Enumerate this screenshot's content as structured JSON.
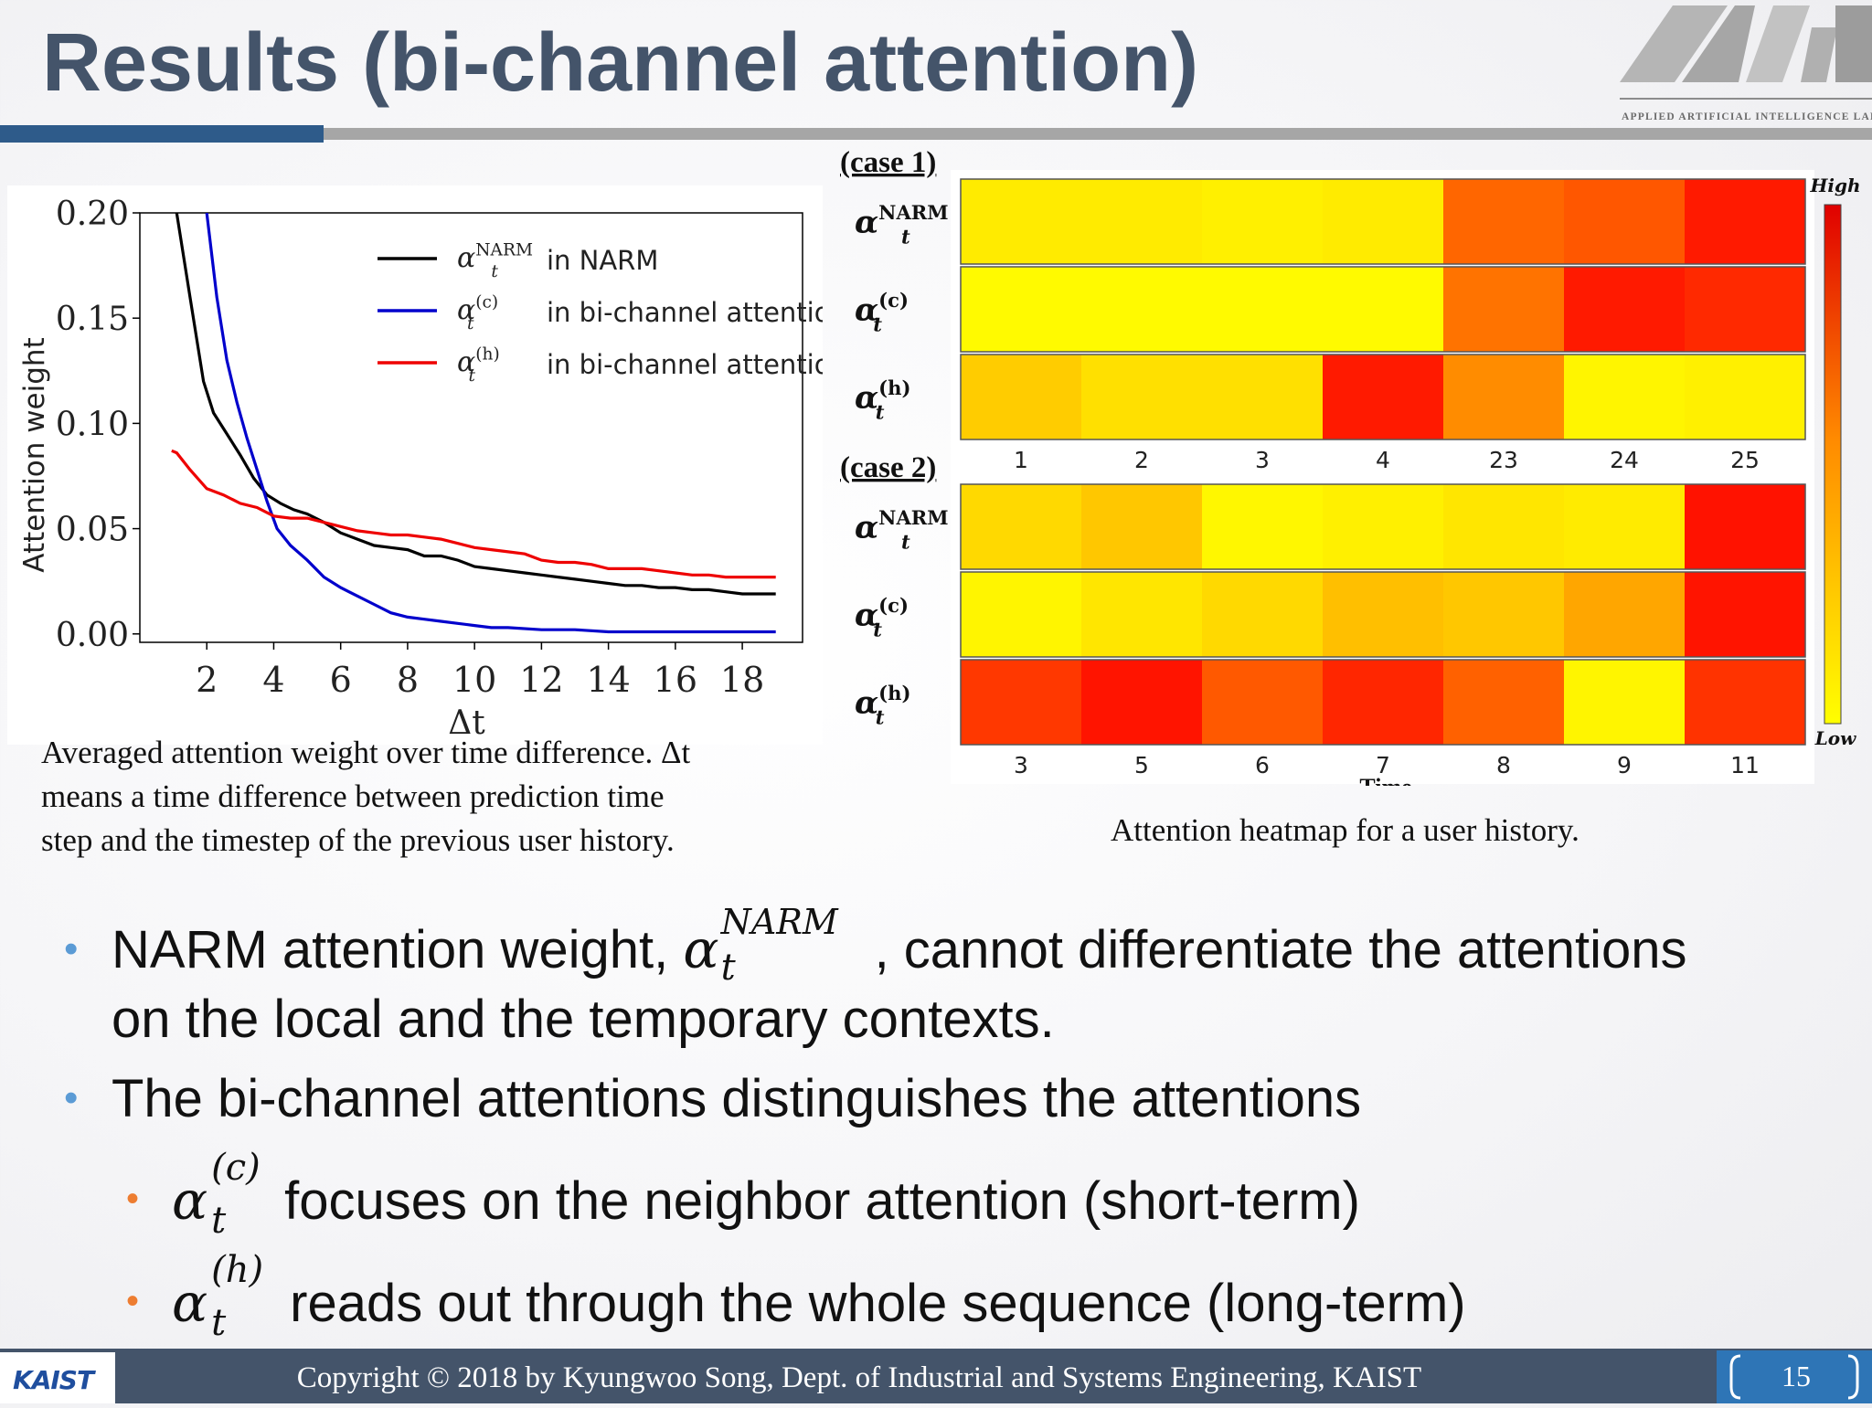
{
  "title": "Results (bi-channel attention)",
  "logo": {
    "caption": "APPLIED ARTIFICIAL INTELLIGENCE LAB"
  },
  "left_caption": [
    "Averaged attention weight over time difference. Δt",
    "means a time difference between prediction time",
    "step and the timestep of the previous user history."
  ],
  "right_caption": "Attention heatmap for a user history.",
  "bullets": {
    "b1_pre": "NARM attention weight, ",
    "b1_sym": "α",
    "b1_sub": "t",
    "b1_sup": "NARM",
    "b1_post": ", cannot differentiate the attentions",
    "b1_line2": "on the local and the temporary contexts.",
    "b2": "The bi-channel attentions distinguishes the attentions",
    "b3_sym": "α",
    "b3_sub": "t",
    "b3_sup": "(c)",
    "b3_text": "focuses on the neighbor attention (short-term)",
    "b4_sym": "α",
    "b4_sub": "t",
    "b4_sup": "(h)",
    "b4_text": "reads out through the whole sequence (long-term)"
  },
  "footer": {
    "copyright": "Copyright © 2018 by Kyungwoo Song, Dept. of Industrial and Systems Engineering, KAIST",
    "kaist": "KAIST",
    "page": "15"
  },
  "colors": {
    "title": "#44546a",
    "accent_bar": "#2e5b8a",
    "footer": "#44546a",
    "bullet_main": "#5b9bd5",
    "bullet_sub": "#ed7d31"
  },
  "chart_data": [
    {
      "type": "line",
      "xlabel": "Δt",
      "ylabel": "Attention weight",
      "xlim": [
        0,
        19.8
      ],
      "ylim": [
        -0.004,
        0.2
      ],
      "xticks": [
        2,
        4,
        6,
        8,
        10,
        12,
        14,
        16,
        18
      ],
      "yticks": [
        0.0,
        0.05,
        0.1,
        0.15,
        0.2
      ],
      "ytick_labels": [
        "0.00",
        "0.05",
        "0.10",
        "0.15",
        "0.20"
      ],
      "legend_position": "top-right",
      "series": [
        {
          "name": "in NARM",
          "label_sym": "α",
          "label_sub": "t",
          "label_sup": "NARM",
          "color": "#000000",
          "points": [
            [
              1.1,
              0.2
            ],
            [
              1.5,
              0.16
            ],
            [
              1.9,
              0.12
            ],
            [
              2.2,
              0.105
            ],
            [
              2.6,
              0.095
            ],
            [
              3.0,
              0.085
            ],
            [
              3.4,
              0.074
            ],
            [
              3.8,
              0.066
            ],
            [
              4.2,
              0.062
            ],
            [
              4.6,
              0.059
            ],
            [
              5.0,
              0.057
            ],
            [
              5.5,
              0.053
            ],
            [
              6.0,
              0.048
            ],
            [
              6.5,
              0.045
            ],
            [
              7.0,
              0.042
            ],
            [
              7.5,
              0.041
            ],
            [
              8.0,
              0.04
            ],
            [
              8.5,
              0.037
            ],
            [
              9.0,
              0.037
            ],
            [
              9.5,
              0.035
            ],
            [
              10.0,
              0.032
            ],
            [
              10.5,
              0.031
            ],
            [
              11.0,
              0.03
            ],
            [
              11.5,
              0.029
            ],
            [
              12.0,
              0.028
            ],
            [
              12.5,
              0.027
            ],
            [
              13.0,
              0.026
            ],
            [
              13.5,
              0.025
            ],
            [
              14.0,
              0.024
            ],
            [
              14.5,
              0.023
            ],
            [
              15.0,
              0.023
            ],
            [
              15.5,
              0.022
            ],
            [
              16.0,
              0.022
            ],
            [
              16.5,
              0.021
            ],
            [
              17.0,
              0.021
            ],
            [
              17.5,
              0.02
            ],
            [
              18.0,
              0.019
            ],
            [
              19.0,
              0.019
            ]
          ]
        },
        {
          "name": "in bi-channel attention",
          "label_sym": "α",
          "label_sub": "t",
          "label_sup": "(c)",
          "color": "#0000cc",
          "points": [
            [
              2.0,
              0.2
            ],
            [
              2.3,
              0.16
            ],
            [
              2.6,
              0.13
            ],
            [
              2.9,
              0.11
            ],
            [
              3.2,
              0.093
            ],
            [
              3.5,
              0.078
            ],
            [
              3.8,
              0.063
            ],
            [
              4.1,
              0.05
            ],
            [
              4.5,
              0.042
            ],
            [
              5.0,
              0.035
            ],
            [
              5.5,
              0.027
            ],
            [
              6.0,
              0.022
            ],
            [
              6.5,
              0.018
            ],
            [
              7.0,
              0.014
            ],
            [
              7.5,
              0.01
            ],
            [
              8.0,
              0.008
            ],
            [
              8.5,
              0.007
            ],
            [
              9.0,
              0.006
            ],
            [
              9.5,
              0.005
            ],
            [
              10.0,
              0.004
            ],
            [
              10.5,
              0.003
            ],
            [
              11.0,
              0.003
            ],
            [
              12.0,
              0.002
            ],
            [
              13.0,
              0.002
            ],
            [
              14.0,
              0.001
            ],
            [
              16.0,
              0.001
            ],
            [
              19.0,
              0.001
            ]
          ]
        },
        {
          "name": "in bi-channel attention",
          "label_sym": "α",
          "label_sub": "t",
          "label_sup": "(h)",
          "color": "#ee0000",
          "points": [
            [
              0.95,
              0.087
            ],
            [
              1.1,
              0.086
            ],
            [
              1.5,
              0.078
            ],
            [
              2.0,
              0.069
            ],
            [
              2.5,
              0.066
            ],
            [
              3.0,
              0.062
            ],
            [
              3.5,
              0.06
            ],
            [
              4.0,
              0.056
            ],
            [
              4.5,
              0.055
            ],
            [
              5.0,
              0.055
            ],
            [
              5.5,
              0.053
            ],
            [
              6.0,
              0.051
            ],
            [
              6.5,
              0.049
            ],
            [
              7.0,
              0.048
            ],
            [
              7.5,
              0.047
            ],
            [
              8.0,
              0.047
            ],
            [
              8.5,
              0.046
            ],
            [
              9.0,
              0.045
            ],
            [
              9.5,
              0.043
            ],
            [
              10.0,
              0.041
            ],
            [
              10.5,
              0.04
            ],
            [
              11.0,
              0.039
            ],
            [
              11.5,
              0.038
            ],
            [
              12.0,
              0.035
            ],
            [
              12.5,
              0.034
            ],
            [
              13.0,
              0.034
            ],
            [
              13.5,
              0.033
            ],
            [
              14.0,
              0.031
            ],
            [
              14.5,
              0.031
            ],
            [
              15.0,
              0.031
            ],
            [
              15.5,
              0.03
            ],
            [
              16.0,
              0.029
            ],
            [
              16.5,
              0.028
            ],
            [
              17.0,
              0.028
            ],
            [
              17.5,
              0.027
            ],
            [
              18.0,
              0.027
            ],
            [
              19.0,
              0.027
            ]
          ]
        }
      ]
    },
    {
      "type": "heatmap",
      "xlabel": "Time",
      "colorbar": {
        "high_label": "High",
        "low_label": "Low"
      },
      "cases": [
        {
          "label": "(case 1)",
          "x_labels": [
            "1",
            "2",
            "3",
            "4",
            "23",
            "24",
            "25"
          ],
          "rows": [
            {
              "sym": "α",
              "sub": "t",
              "sup": "NARM",
              "values": [
                0.08,
                0.08,
                0.06,
                0.08,
                0.6,
                0.66,
                0.9
              ]
            },
            {
              "sym": "α",
              "sub": "t",
              "sup": "(c)",
              "values": [
                0.02,
                0.02,
                0.02,
                0.02,
                0.55,
                0.9,
                0.84
              ]
            },
            {
              "sym": "α",
              "sub": "t",
              "sup": "(h)",
              "values": [
                0.2,
                0.12,
                0.12,
                0.9,
                0.45,
                0.04,
                0.06
              ]
            }
          ]
        },
        {
          "label": "(case 2)",
          "x_labels": [
            "3",
            "5",
            "6",
            "7",
            "8",
            "9",
            "11"
          ],
          "rows": [
            {
              "sym": "α",
              "sub": "t",
              "sup": "NARM",
              "values": [
                0.15,
                0.22,
                0.03,
                0.06,
                0.1,
                0.08,
                0.93
              ]
            },
            {
              "sym": "α",
              "sub": "t",
              "sup": "(c)",
              "values": [
                0.04,
                0.1,
                0.15,
                0.25,
                0.22,
                0.35,
                0.92
              ]
            },
            {
              "sym": "α",
              "sub": "t",
              "sup": "(h)",
              "values": [
                0.78,
                0.92,
                0.65,
                0.85,
                0.62,
                0.04,
                0.8
              ]
            }
          ]
        }
      ]
    }
  ]
}
